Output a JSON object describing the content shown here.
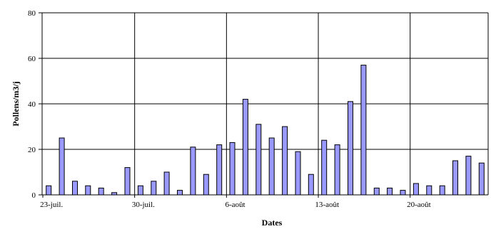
{
  "chart_data": {
    "type": "bar",
    "xlabel": "Dates",
    "ylabel": "Pollens/m3/j",
    "ylim": [
      0,
      80
    ],
    "y_ticks": [
      0,
      20,
      40,
      60,
      80
    ],
    "grid": true,
    "bar_color": "#9999FF",
    "bar_outline": "#000000",
    "x_tick_labels": [
      {
        "label": "23-juil.",
        "index": 0
      },
      {
        "label": "30-juil.",
        "index": 7
      },
      {
        "label": "6-août",
        "index": 14
      },
      {
        "label": "13-août",
        "index": 21
      },
      {
        "label": "20-août",
        "index": 28
      }
    ],
    "values": [
      4,
      25,
      6,
      4,
      3,
      1,
      12,
      4,
      6,
      10,
      2,
      21,
      9,
      22,
      23,
      42,
      31,
      25,
      30,
      19,
      9,
      24,
      22,
      41,
      57,
      3,
      3,
      2,
      5,
      4,
      4,
      15,
      17,
      14
    ]
  }
}
